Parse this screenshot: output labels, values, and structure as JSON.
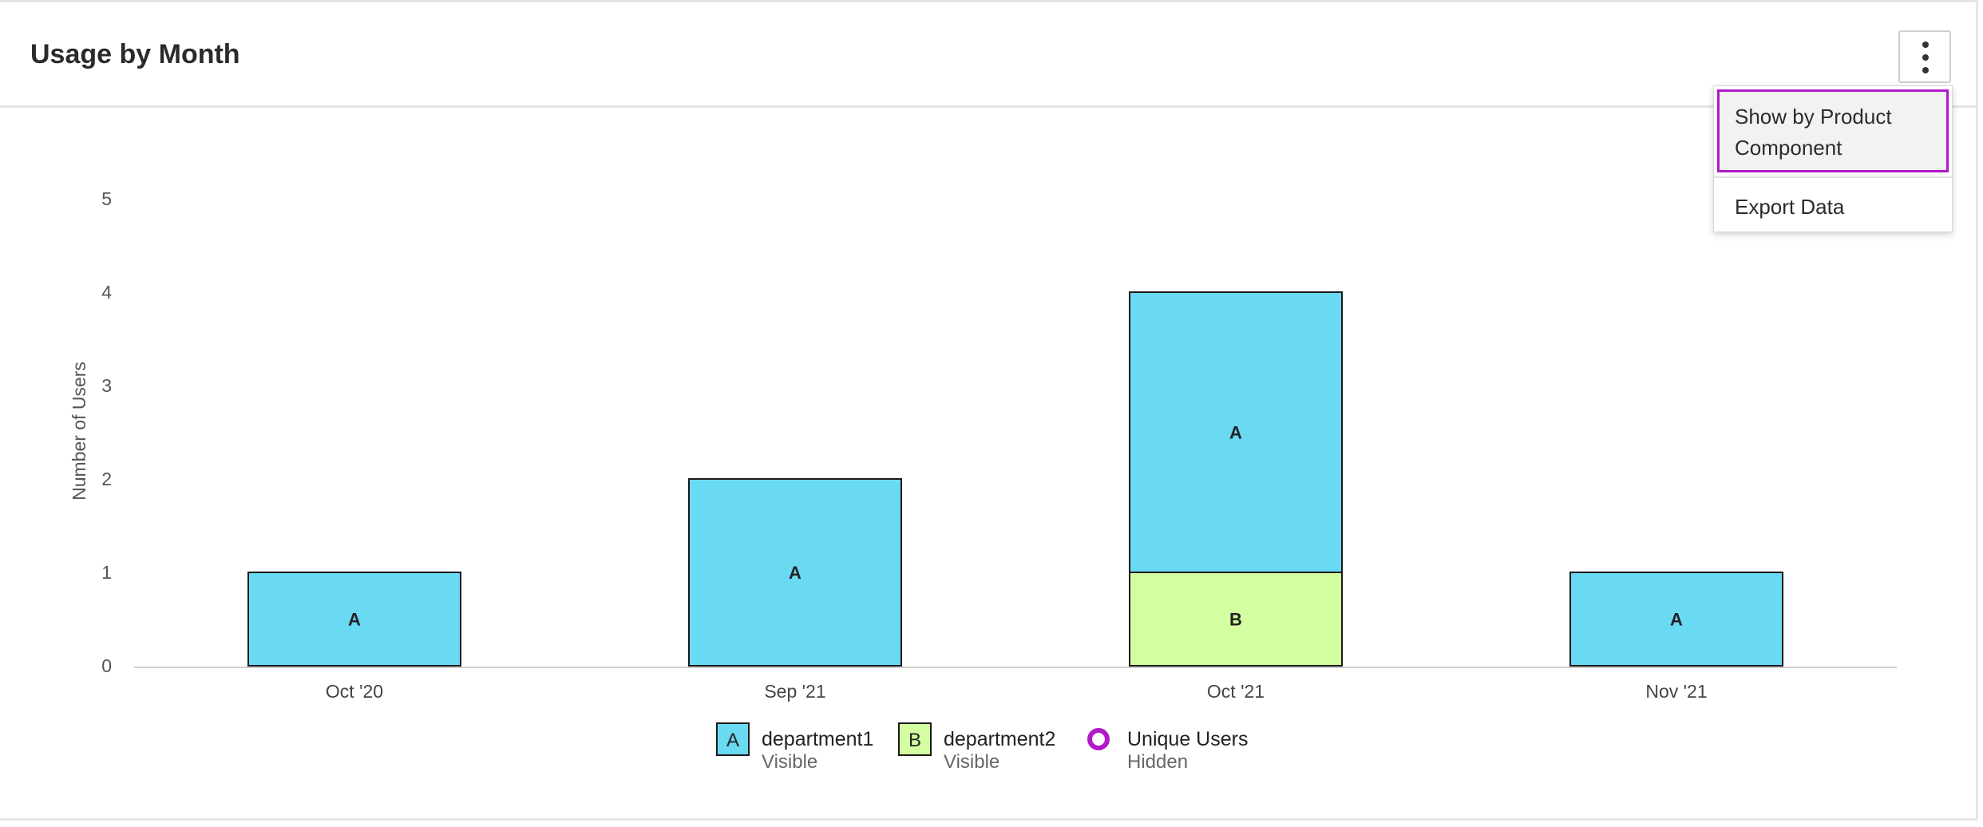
{
  "header": {
    "title": "Usage by Month"
  },
  "menu": {
    "items": [
      {
        "label": "Show by Product Component",
        "state": "focused"
      },
      {
        "label": "Export Data"
      }
    ]
  },
  "legend": [
    {
      "letter": "A",
      "name": "department1",
      "status": "Visible",
      "color": "#6ad9f2"
    },
    {
      "letter": "B",
      "name": "department2",
      "status": "Visible",
      "color": "#d3ffa0"
    },
    {
      "name": "Unique Users",
      "status": "Hidden",
      "color": "#b01ac9",
      "icon": "ring-icon"
    }
  ],
  "chart_data": {
    "type": "bar",
    "stacked": true,
    "categories": [
      "Oct '20",
      "Sep '21",
      "Oct '21",
      "Nov '21"
    ],
    "series": [
      {
        "name": "department2",
        "letter": "B",
        "color": "#d3ffa0",
        "values": [
          0,
          0,
          1,
          0
        ]
      },
      {
        "name": "department1",
        "letter": "A",
        "color": "#6ad9f2",
        "values": [
          1,
          2,
          3,
          1
        ]
      }
    ],
    "ylabel": "Number of Users",
    "ylim": [
      0,
      5
    ],
    "yticks": [
      0,
      1,
      2,
      3,
      4,
      5
    ],
    "grid": false,
    "legend_position": "bottom"
  }
}
